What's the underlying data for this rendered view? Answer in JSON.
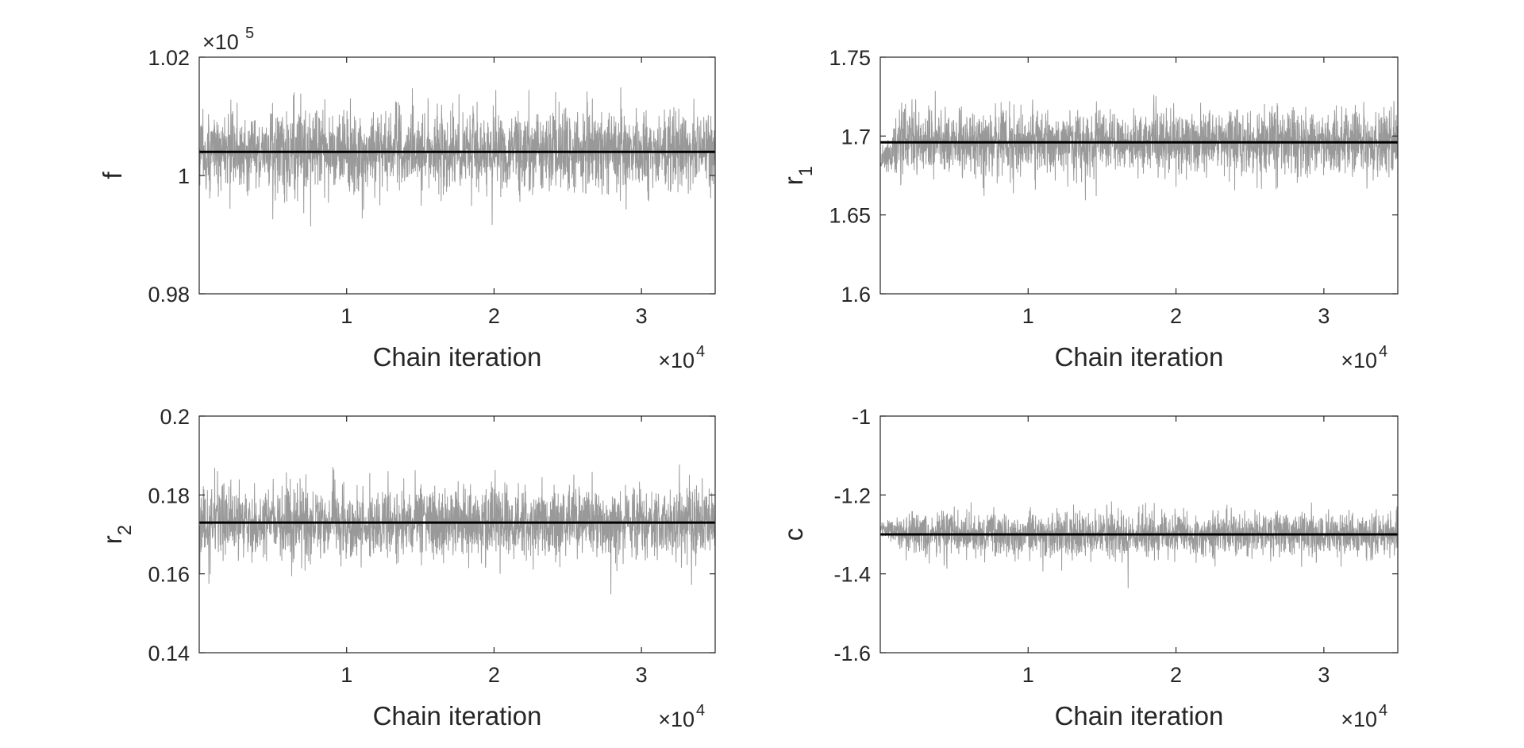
{
  "figure": {
    "background": "#ffffff",
    "trace_color": "#999999",
    "mean_color": "#000000",
    "axis_color": "#262626"
  },
  "chart_data": [
    {
      "type": "line",
      "ylabel": "f",
      "ylabel_subscript": "",
      "xlabel": "Chain iteration",
      "xlim": [
        0,
        35000
      ],
      "ylim": [
        98000,
        102000
      ],
      "xticks": [
        10000,
        20000,
        30000
      ],
      "xtick_labels": [
        "1",
        "2",
        "3"
      ],
      "x_exponent_label": "×10",
      "x_exponent_power": "4",
      "yticks": [
        98000,
        100000,
        102000
      ],
      "ytick_labels": [
        "0.98",
        "1",
        "1.02"
      ],
      "y_exponent_label": "×10",
      "y_exponent_power": "5",
      "mean_value": 100400,
      "trace": {
        "samples": 35000,
        "center": 100400,
        "noise_sd": 340,
        "min": 98900,
        "max": 101800,
        "burn_in_steps": 0,
        "burn_in_start": 100400
      }
    },
    {
      "type": "line",
      "ylabel": "r",
      "ylabel_subscript": "1",
      "xlabel": "Chain iteration",
      "xlim": [
        0,
        35000
      ],
      "ylim": [
        1.6,
        1.75
      ],
      "xticks": [
        10000,
        20000,
        30000
      ],
      "xtick_labels": [
        "1",
        "2",
        "3"
      ],
      "x_exponent_label": "×10",
      "x_exponent_power": "4",
      "yticks": [
        1.6,
        1.65,
        1.7,
        1.75
      ],
      "ytick_labels": [
        "1.6",
        "1.65",
        "1.7",
        "1.75"
      ],
      "y_exponent_label": "",
      "y_exponent_power": "",
      "mean_value": 1.696,
      "trace": {
        "samples": 35000,
        "center": 1.696,
        "noise_sd": 0.0105,
        "min": 1.65,
        "max": 1.745,
        "burn_in_steps": 1200,
        "burn_in_start": 1.684
      }
    },
    {
      "type": "line",
      "ylabel": "r",
      "ylabel_subscript": "2",
      "xlabel": "Chain iteration",
      "xlim": [
        0,
        35000
      ],
      "ylim": [
        0.14,
        0.2
      ],
      "xticks": [
        10000,
        20000,
        30000
      ],
      "xtick_labels": [
        "1",
        "2",
        "3"
      ],
      "x_exponent_label": "×10",
      "x_exponent_power": "4",
      "yticks": [
        0.14,
        0.16,
        0.18,
        0.2
      ],
      "ytick_labels": [
        "0.14",
        "0.16",
        "0.18",
        "0.2"
      ],
      "y_exponent_label": "",
      "y_exponent_power": "",
      "mean_value": 0.173,
      "trace": {
        "samples": 35000,
        "center": 0.173,
        "noise_sd": 0.0045,
        "min": 0.151,
        "max": 0.193,
        "burn_in_steps": 0,
        "burn_in_start": 0.173
      }
    },
    {
      "type": "line",
      "ylabel": "c",
      "ylabel_subscript": "",
      "xlabel": "Chain iteration",
      "xlim": [
        0,
        35000
      ],
      "ylim": [
        -1.6,
        -1.0
      ],
      "xticks": [
        10000,
        20000,
        30000
      ],
      "xtick_labels": [
        "1",
        "2",
        "3"
      ],
      "x_exponent_label": "×10",
      "x_exponent_power": "4",
      "yticks": [
        -1.6,
        -1.4,
        -1.2,
        -1.0
      ],
      "ytick_labels": [
        "-1.6",
        "-1.4",
        "-1.2",
        "-1"
      ],
      "y_exponent_label": "",
      "y_exponent_power": "",
      "mean_value": -1.3,
      "trace": {
        "samples": 35000,
        "center": -1.3,
        "noise_sd": 0.028,
        "min": -1.45,
        "max": -1.14,
        "burn_in_steps": 2000,
        "burn_in_start": -1.28
      }
    }
  ]
}
